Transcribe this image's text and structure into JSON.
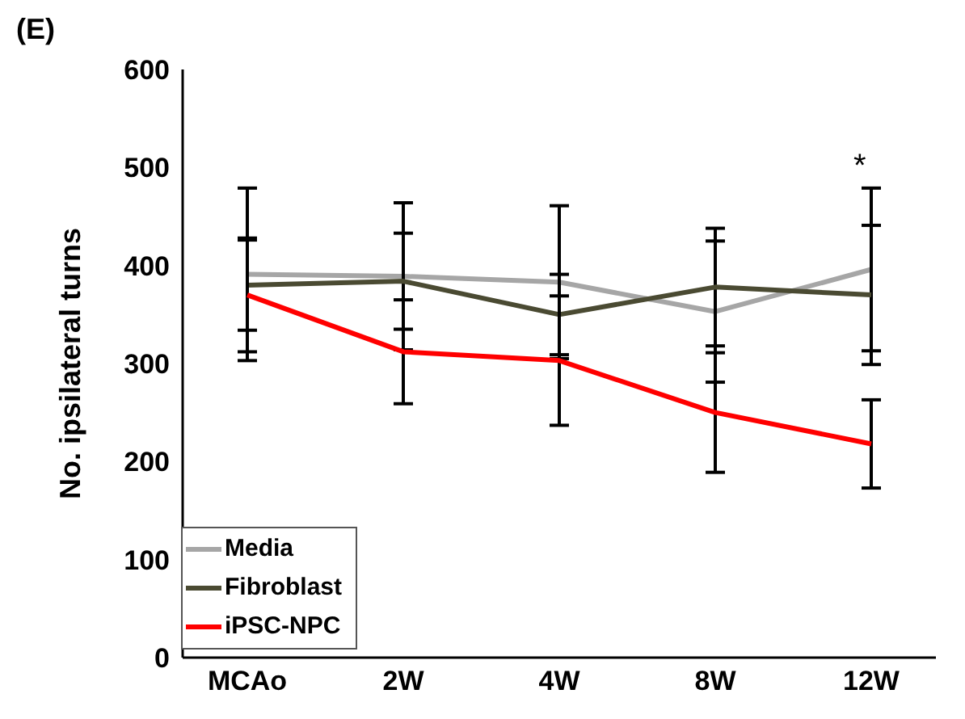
{
  "chart_data": {
    "type": "line",
    "title": "(E)",
    "ylabel": "No. ipsilateral turns",
    "categories": [
      "MCAo",
      "2W",
      "4W",
      "8W",
      "12W"
    ],
    "series": [
      {
        "name": "Media",
        "color": "#a6a6a6",
        "values": [
          391,
          389,
          383,
          353,
          396
        ],
        "errors": [
          88,
          75,
          78,
          72,
          83
        ]
      },
      {
        "name": "Fibroblast",
        "color": "#4a4a32",
        "values": [
          380,
          384,
          350,
          378,
          370
        ],
        "errors": [
          46,
          49,
          41,
          60,
          71
        ]
      },
      {
        "name": "iPSC-NPC",
        "color": "#ff0000",
        "values": [
          370,
          312,
          303,
          250,
          218
        ],
        "errors": [
          58,
          53,
          66,
          61,
          45
        ]
      }
    ],
    "ylim": [
      0,
      600
    ],
    "yticks": [
      0,
      100,
      200,
      300,
      400,
      500,
      600
    ],
    "grid": false,
    "legend": "bottom left",
    "marker": "none",
    "line_style": "solid",
    "annotations": [
      "*"
    ]
  }
}
